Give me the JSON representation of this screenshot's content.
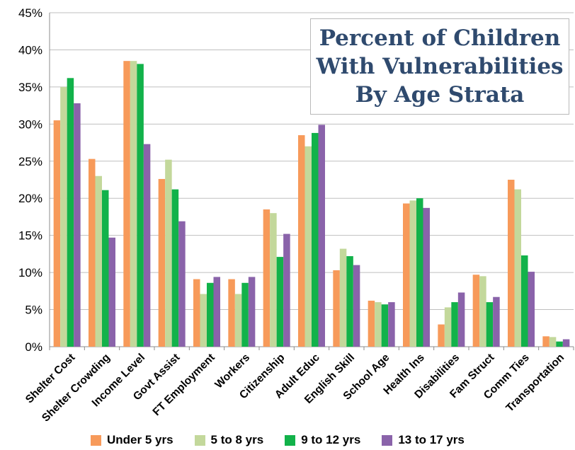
{
  "title": {
    "line1": "Percent of Children",
    "line2": "With Vulnerabilities",
    "line3": "By Age Strata"
  },
  "colors": {
    "series": [
      "#f79a5a",
      "#c3d89b",
      "#12b24a",
      "#8a63aa"
    ],
    "gridline": "#bfbfbf",
    "axis": "#8c8c8c",
    "title_text": "#2f4a6e"
  },
  "chart_data": {
    "type": "bar",
    "title": "Percent of Children With Vulnerabilities By Age Strata",
    "xlabel": "",
    "ylabel": "",
    "ylim": [
      0,
      45
    ],
    "y_ticks": [
      "0%",
      "5%",
      "10%",
      "15%",
      "20%",
      "25%",
      "30%",
      "35%",
      "40%",
      "45%"
    ],
    "grid": true,
    "legend_position": "bottom",
    "categories": [
      "Shelter Cost",
      "Shelter Crowding",
      "Income Level",
      "Govt Assist",
      "FT Employment",
      "Workers",
      "Citizenship",
      "Adult Educ",
      "English Skill",
      "School Age",
      "Health Ins",
      "Disabilities",
      "Fam Struct",
      "Comm Ties",
      "Transportation"
    ],
    "series": [
      {
        "name": "Under 5 yrs",
        "values": [
          30.5,
          25.3,
          38.5,
          22.6,
          9.1,
          9.1,
          18.5,
          28.5,
          10.3,
          6.2,
          19.3,
          3.0,
          9.7,
          22.5,
          1.4
        ]
      },
      {
        "name": "5 to 8 yrs",
        "values": [
          35.0,
          23.0,
          38.5,
          25.2,
          7.1,
          7.1,
          18.0,
          27.0,
          13.2,
          6.0,
          19.7,
          5.3,
          9.5,
          21.2,
          1.3
        ]
      },
      {
        "name": "9 to 12 yrs",
        "values": [
          36.2,
          21.1,
          38.1,
          21.2,
          8.6,
          8.6,
          12.1,
          28.8,
          12.2,
          5.7,
          20.0,
          6.0,
          6.0,
          12.3,
          0.7
        ]
      },
      {
        "name": "13 to 17 yrs",
        "values": [
          32.8,
          14.7,
          27.3,
          16.9,
          9.4,
          9.4,
          15.2,
          29.9,
          11.0,
          6.0,
          18.7,
          7.3,
          6.7,
          10.1,
          1.0
        ]
      }
    ]
  }
}
